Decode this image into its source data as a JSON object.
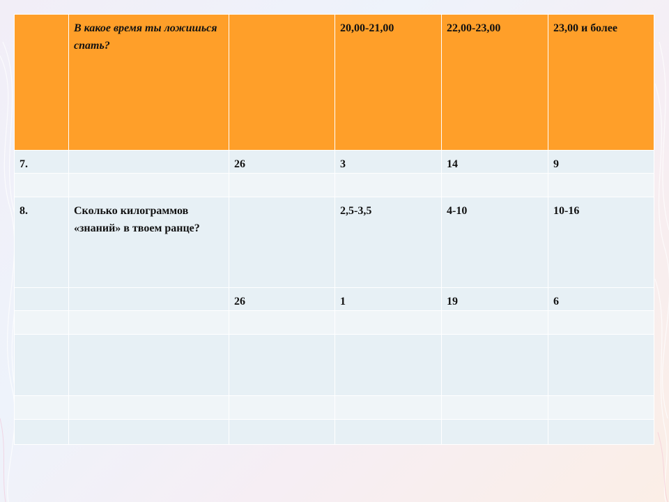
{
  "colors": {
    "header_bg": "#ff9f29",
    "row_bg": "#e7f0f5",
    "row_bg_alt": "#f0f5f8",
    "border": "#ffffff"
  },
  "table": {
    "header": [
      "",
      "В какое время ты ложишься спать?",
      "",
      "20,00-21,00",
      "22,00-23,00",
      "23,00 и более"
    ],
    "rows": [
      [
        "7.",
        "",
        "26",
        "3",
        "14",
        "9"
      ],
      [
        "",
        "",
        "",
        "",
        "",
        ""
      ],
      [
        "8.",
        "Сколько килограммов «знаний» в твоем ранце?",
        "",
        "2,5-3,5",
        "4-10",
        "10-16"
      ],
      [
        "",
        "",
        "26",
        "1",
        "19",
        "6"
      ],
      [
        "",
        "",
        "",
        "",
        "",
        ""
      ],
      [
        "",
        "",
        "",
        "",
        "",
        ""
      ],
      [
        "",
        "",
        "",
        "",
        "",
        ""
      ],
      [
        "",
        "",
        "",
        "",
        "",
        ""
      ]
    ]
  }
}
